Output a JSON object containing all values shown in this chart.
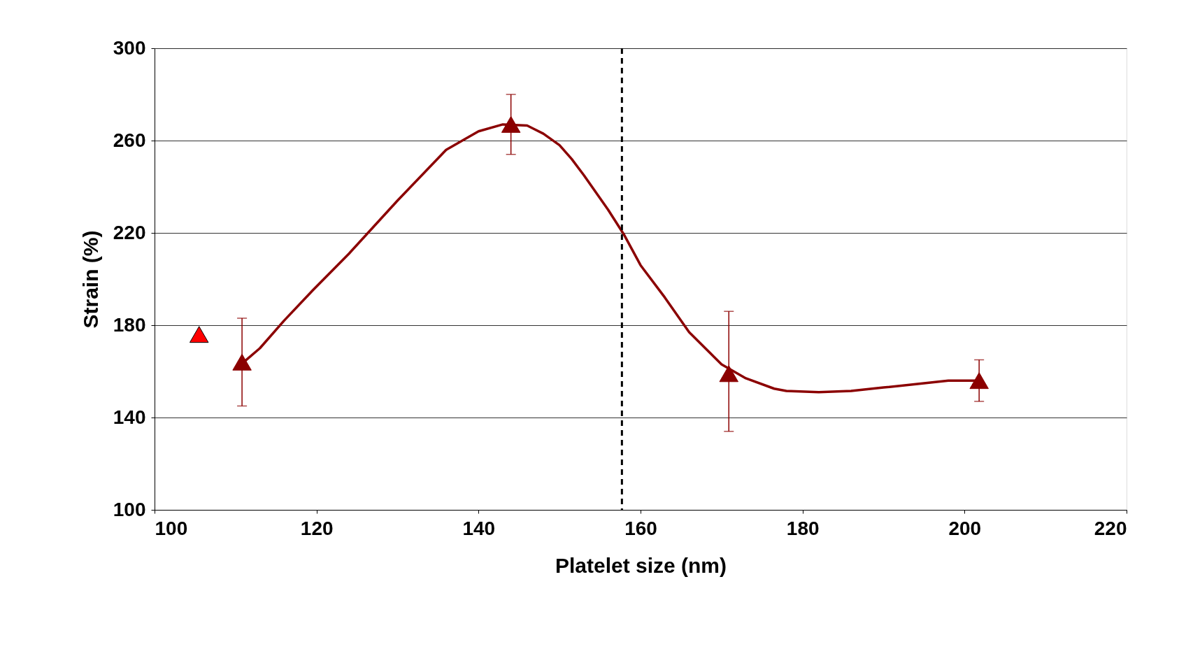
{
  "chart_data": {
    "type": "scatter",
    "xlabel": "Platelet size (nm)",
    "ylabel": "Strain (%)",
    "xlim": [
      100,
      220
    ],
    "xticks": [
      100,
      120,
      140,
      160,
      180,
      200,
      220
    ],
    "ylim": [
      100,
      300
    ],
    "yticks": [
      100,
      140,
      180,
      220,
      260,
      300
    ],
    "grid": "y",
    "marker": "triangle",
    "series": [
      {
        "color": "#ff0000",
        "x": [
          105.5
        ],
        "values": [
          176
        ]
      },
      {
        "color": "#8b0000",
        "x": [
          110.8,
          144,
          170.9,
          201.8
        ],
        "values": [
          164,
          267,
          159,
          156
        ],
        "errors": [
          [
            145,
            183
          ],
          [
            254,
            280
          ],
          [
            134,
            186
          ],
          [
            147,
            165
          ]
        ]
      },
      {
        "type": "line",
        "color": "#8b0000",
        "line_style": "solid",
        "marker": "none",
        "x": [
          111,
          113,
          116,
          119.5,
          124,
          130,
          136,
          140,
          143,
          146,
          148,
          150,
          151.5,
          153,
          156,
          158,
          160,
          163,
          166,
          168,
          170,
          173,
          176.5,
          178,
          182,
          186,
          190,
          194,
          198,
          202
        ],
        "values": [
          164,
          170,
          182,
          195,
          211,
          234,
          256,
          264,
          267,
          266.5,
          263,
          258,
          252,
          245,
          230,
          219,
          206,
          192,
          177,
          170,
          163,
          157,
          152.5,
          151.5,
          151,
          151.5,
          153,
          154.5,
          156,
          156
        ]
      }
    ],
    "ref_lines": [
      {
        "axis": "x",
        "value": 157.7,
        "color": "#000000",
        "line_style": "dashed"
      }
    ]
  }
}
